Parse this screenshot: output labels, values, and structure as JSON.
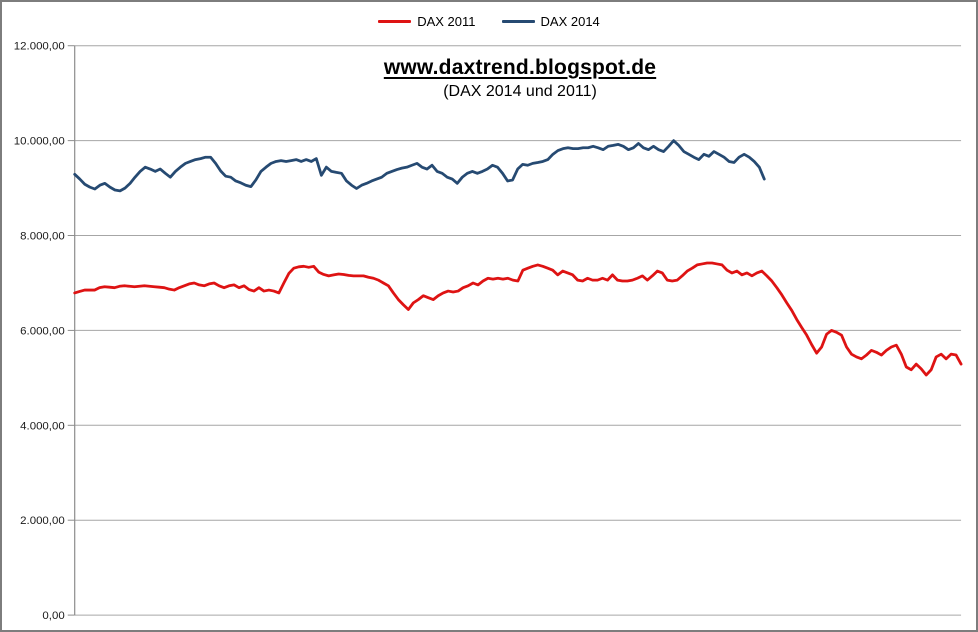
{
  "chart_data": {
    "type": "line",
    "title": "www.daxtrend.blogspot.de",
    "subtitle": "(DAX 2014 und 2011)",
    "xlabel": "",
    "ylabel": "",
    "ylim": [
      0,
      12000
    ],
    "grid": "horizontal",
    "legend_position": "top-center",
    "background_color": "#ffffff",
    "grid_color": "#a6a6a6",
    "axis_color": "#8c8c8c",
    "tick_label_color": "#1a1a1a",
    "y_ticks": [
      {
        "value": 12000,
        "label": "12.000,00"
      },
      {
        "value": 10000,
        "label": "10.000,00"
      },
      {
        "value": 8000,
        "label": "8.000,00"
      },
      {
        "value": 6000,
        "label": "6.000,00"
      },
      {
        "value": 4000,
        "label": "4.000,00"
      },
      {
        "value": 2000,
        "label": "2.000,00"
      },
      {
        "value": 0,
        "label": "0,00"
      }
    ],
    "x_ticks": [],
    "series": [
      {
        "name": "DAX 2011",
        "color": "#de1313",
        "x_span": [
          0,
          1
        ],
        "values": [
          6790,
          6820,
          6850,
          6850,
          6850,
          6900,
          6920,
          6910,
          6900,
          6930,
          6940,
          6930,
          6920,
          6930,
          6940,
          6930,
          6920,
          6910,
          6900,
          6870,
          6850,
          6900,
          6940,
          6980,
          7000,
          6960,
          6940,
          6980,
          7000,
          6940,
          6900,
          6940,
          6960,
          6900,
          6940,
          6860,
          6830,
          6900,
          6830,
          6850,
          6830,
          6790,
          7000,
          7200,
          7310,
          7340,
          7350,
          7330,
          7350,
          7230,
          7180,
          7150,
          7170,
          7190,
          7180,
          7160,
          7150,
          7150,
          7150,
          7120,
          7100,
          7060,
          7000,
          6940,
          6790,
          6650,
          6540,
          6440,
          6580,
          6650,
          6730,
          6690,
          6650,
          6730,
          6790,
          6830,
          6810,
          6830,
          6900,
          6940,
          7000,
          6960,
          7040,
          7100,
          7080,
          7100,
          7080,
          7100,
          7060,
          7040,
          7270,
          7310,
          7350,
          7380,
          7350,
          7310,
          7270,
          7170,
          7250,
          7210,
          7170,
          7060,
          7040,
          7100,
          7060,
          7060,
          7100,
          7060,
          7170,
          7060,
          7040,
          7040,
          7060,
          7100,
          7150,
          7060,
          7150,
          7250,
          7210,
          7060,
          7040,
          7060,
          7150,
          7250,
          7310,
          7380,
          7400,
          7420,
          7420,
          7400,
          7380,
          7270,
          7210,
          7250,
          7170,
          7210,
          7150,
          7210,
          7250,
          7150,
          7040,
          6900,
          6750,
          6580,
          6420,
          6230,
          6060,
          5900,
          5700,
          5520,
          5650,
          5920,
          6000,
          5960,
          5900,
          5650,
          5500,
          5440,
          5400,
          5480,
          5580,
          5540,
          5480,
          5580,
          5650,
          5690,
          5500,
          5230,
          5170,
          5290,
          5190,
          5060,
          5170,
          5440,
          5500,
          5400,
          5500,
          5480,
          5290
        ]
      },
      {
        "name": "DAX 2014",
        "color": "#264a72",
        "x_span": [
          0,
          0.778
        ],
        "values": [
          9290,
          9190,
          9080,
          9020,
          8980,
          9060,
          9100,
          9020,
          8960,
          8940,
          9000,
          9100,
          9230,
          9350,
          9440,
          9400,
          9350,
          9400,
          9310,
          9230,
          9350,
          9440,
          9520,
          9560,
          9600,
          9620,
          9650,
          9650,
          9520,
          9360,
          9250,
          9230,
          9150,
          9110,
          9060,
          9030,
          9170,
          9350,
          9440,
          9520,
          9560,
          9580,
          9560,
          9580,
          9600,
          9560,
          9600,
          9560,
          9620,
          9270,
          9440,
          9350,
          9330,
          9310,
          9150,
          9060,
          8990,
          9060,
          9100,
          9150,
          9190,
          9230,
          9310,
          9350,
          9390,
          9420,
          9440,
          9480,
          9520,
          9440,
          9400,
          9480,
          9350,
          9310,
          9230,
          9190,
          9100,
          9230,
          9310,
          9350,
          9310,
          9350,
          9400,
          9480,
          9440,
          9310,
          9150,
          9170,
          9400,
          9500,
          9480,
          9520,
          9540,
          9560,
          9600,
          9710,
          9790,
          9830,
          9850,
          9830,
          9830,
          9850,
          9850,
          9880,
          9850,
          9810,
          9880,
          9900,
          9920,
          9880,
          9810,
          9850,
          9940,
          9850,
          9810,
          9880,
          9810,
          9770,
          9880,
          10000,
          9900,
          9770,
          9710,
          9650,
          9600,
          9710,
          9670,
          9770,
          9710,
          9650,
          9560,
          9540,
          9650,
          9710,
          9650,
          9560,
          9440,
          9190
        ]
      }
    ]
  }
}
